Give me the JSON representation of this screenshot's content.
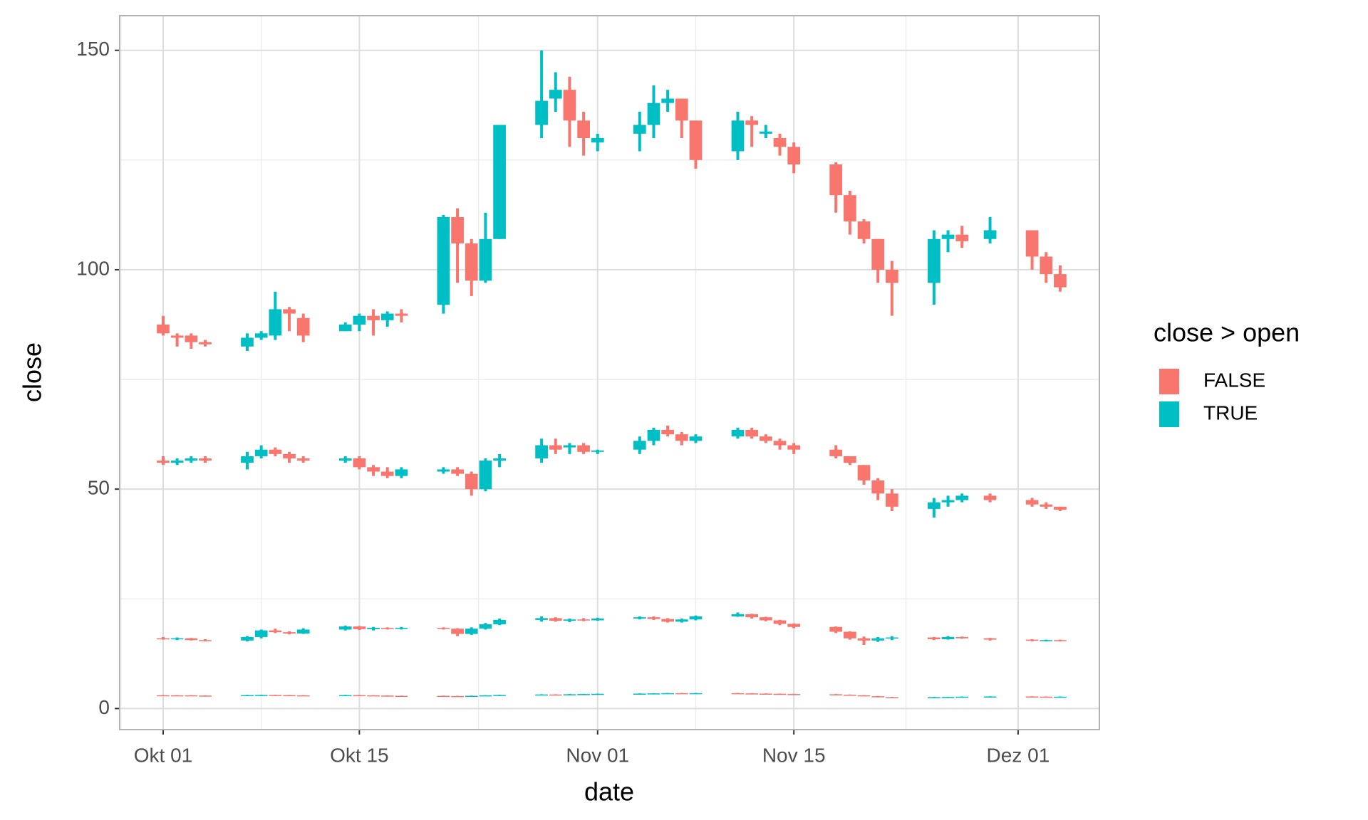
{
  "chart_data": {
    "type": "candlestick",
    "x_label": "date",
    "y_label": "close",
    "x": [
      0,
      1,
      2,
      3,
      6,
      7,
      8,
      9,
      10,
      13,
      14,
      15,
      16,
      17,
      20,
      21,
      22,
      23,
      24,
      27,
      28,
      29,
      30,
      31,
      34,
      35,
      36,
      37,
      38,
      41,
      42,
      43,
      44,
      45,
      48,
      49,
      50,
      51,
      52,
      55,
      56,
      57,
      59,
      62,
      63,
      64
    ],
    "xlim": [
      -3.1,
      66.8
    ],
    "xticks": [
      {
        "value": 0,
        "label": "Okt 01"
      },
      {
        "value": 14,
        "label": "Okt 15"
      },
      {
        "value": 31,
        "label": "Nov 01"
      },
      {
        "value": 45,
        "label": "Nov 15"
      },
      {
        "value": 61,
        "label": "Dez 01"
      }
    ],
    "xminor": [
      7,
      22.5,
      38,
      53
    ],
    "ylim": [
      -4.8,
      157.9
    ],
    "yticks": [
      0,
      50,
      100,
      150
    ],
    "yminor": [
      25,
      75,
      125
    ],
    "grid": true,
    "legend": {
      "title": "close > open",
      "position": "right",
      "entries": [
        {
          "label": "FALSE",
          "color": "#F8766D"
        },
        {
          "label": "TRUE",
          "color": "#00BFC4"
        }
      ]
    },
    "series": [
      {
        "open": [
          87.5,
          85,
          85,
          83.5,
          82.5,
          84.5,
          85,
          91,
          89,
          86,
          87.5,
          89.5,
          88.5,
          90,
          92,
          112,
          106,
          97.5,
          107,
          133,
          139,
          141,
          134,
          129,
          131,
          133,
          138,
          139,
          134,
          127,
          134,
          131,
          130,
          128,
          124,
          117,
          111,
          107,
          100,
          97,
          107,
          108,
          107,
          109,
          103,
          99
        ],
        "high": [
          89.5,
          85.5,
          85.5,
          84,
          85.5,
          86,
          95,
          91.5,
          90,
          88,
          90,
          91,
          90.5,
          91,
          112.5,
          114,
          107,
          113,
          133,
          150,
          145,
          144,
          136,
          131,
          136,
          142,
          141,
          139,
          134,
          136,
          135,
          133,
          131,
          129,
          124.5,
          118,
          111.5,
          107,
          102,
          109,
          109,
          110,
          112,
          109,
          104,
          101
        ],
        "low": [
          85,
          82.5,
          82,
          82.5,
          81.5,
          84,
          84,
          86,
          83.5,
          86,
          86,
          85,
          87,
          88,
          90,
          97,
          94,
          97,
          107,
          130,
          136,
          128,
          126,
          127,
          127,
          130,
          136,
          130,
          123,
          125,
          128,
          130,
          126,
          122,
          113,
          108,
          106,
          97,
          89.5,
          92,
          104,
          105,
          106,
          100,
          97,
          95
        ],
        "close": [
          85.5,
          84.5,
          83.5,
          83,
          84.5,
          85.5,
          91,
          90,
          85,
          87.5,
          89.5,
          88.5,
          90,
          89.5,
          112,
          106,
          97.5,
          107,
          133,
          138.5,
          141,
          134,
          130,
          130,
          133,
          138,
          139,
          134,
          125,
          134,
          133,
          131.5,
          128,
          124,
          117,
          111,
          107,
          100,
          97,
          107,
          108,
          106.5,
          109,
          103,
          99,
          96
        ]
      },
      {
        "open": [
          56.5,
          56,
          56.5,
          57,
          56,
          57.5,
          59,
          58,
          57,
          56.5,
          57,
          55,
          54,
          53,
          54,
          54.5,
          53.5,
          50,
          56.5,
          57,
          60,
          59.5,
          60,
          58.5,
          59,
          61,
          63.5,
          62.5,
          61,
          62,
          63.5,
          62,
          61,
          60,
          59,
          57.5,
          55.5,
          52,
          49,
          45.5,
          47,
          47.5,
          48.5,
          47.5,
          46.5,
          46
        ],
        "high": [
          57.5,
          57,
          57.5,
          57.5,
          58.5,
          60,
          59.5,
          58.5,
          57.5,
          57.5,
          57.5,
          55.5,
          55,
          55,
          55,
          55,
          54,
          57,
          58,
          61.5,
          61.5,
          60.5,
          60.5,
          59,
          62,
          64,
          64.5,
          63,
          62.5,
          64,
          64,
          62.5,
          61.5,
          60.5,
          60,
          57.5,
          55.5,
          52.5,
          50,
          48,
          48.5,
          49,
          49,
          48,
          47,
          46
        ],
        "low": [
          55.5,
          55.5,
          56,
          56,
          54.5,
          57,
          57.5,
          56,
          56,
          56,
          54.5,
          53,
          52.5,
          52.5,
          53.5,
          53,
          48.5,
          49.5,
          55,
          56,
          58,
          58,
          58,
          58,
          58,
          60,
          62,
          60,
          60.5,
          61.5,
          61.5,
          60.5,
          59,
          58,
          57,
          55.5,
          51,
          47.5,
          45,
          43.5,
          46,
          47,
          47,
          46,
          45.5,
          45
        ],
        "close": [
          56,
          56.5,
          57,
          56.5,
          57.5,
          59,
          58,
          57,
          56.5,
          57,
          55,
          54,
          53,
          54.5,
          54.5,
          53.5,
          50,
          56.5,
          57,
          60,
          59,
          60,
          58.5,
          58.8,
          61,
          63.5,
          62.5,
          61,
          62,
          63.5,
          62,
          61,
          60,
          59,
          57.5,
          56,
          52,
          49,
          46,
          47,
          47.5,
          48.5,
          47.5,
          46.5,
          46,
          45.3
        ]
      },
      {
        "open": [
          16,
          15.9,
          16,
          15.6,
          15.5,
          16.3,
          17.8,
          17.4,
          17.1,
          18,
          18.7,
          18.1,
          18.4,
          18.2,
          18.4,
          18.2,
          17,
          18.2,
          19.2,
          20.2,
          20.6,
          20,
          20.3,
          20.1,
          20.5,
          20.8,
          20.4,
          19.8,
          20.3,
          21,
          21.5,
          20.8,
          20.1,
          19.3,
          18.6,
          17.5,
          16,
          15.5,
          16,
          16.2,
          15.8,
          16.3,
          16,
          15.7,
          15.5,
          15.6
        ],
        "high": [
          16.3,
          16.2,
          16.1,
          15.8,
          16.5,
          18,
          18.2,
          17.6,
          18.3,
          18.9,
          18.8,
          18.6,
          18.5,
          18.6,
          18.5,
          18.3,
          18.5,
          19.5,
          20.5,
          21,
          20.8,
          20.5,
          20.6,
          20.7,
          21,
          21,
          20.6,
          20.5,
          21.2,
          21.9,
          21.6,
          20.9,
          20.2,
          19.4,
          18.7,
          17.6,
          16.4,
          16.3,
          16.5,
          16.3,
          16.5,
          16.4,
          16.1,
          15.8,
          15.7,
          15.7
        ],
        "low": [
          15.7,
          15.6,
          15.5,
          15.3,
          15.3,
          16,
          17.2,
          16.9,
          17,
          17.8,
          17.9,
          17.8,
          18,
          18,
          18,
          16.5,
          16.8,
          18,
          19,
          19.8,
          19.8,
          19.7,
          19.9,
          20,
          20.3,
          20.2,
          19.6,
          19.6,
          20.1,
          20.9,
          20.5,
          19.9,
          19,
          18.3,
          17.2,
          15.7,
          14.5,
          15.2,
          15.6,
          15.6,
          15.7,
          15.9,
          15.5,
          15.3,
          15.3,
          15.3
        ],
        "close": [
          15.9,
          16,
          15.6,
          15.5,
          16.3,
          17.8,
          17.4,
          17.1,
          18,
          18.7,
          18.1,
          18.4,
          18.2,
          18.4,
          18.2,
          17,
          18.2,
          19.2,
          20.2,
          20.6,
          20,
          20.3,
          20.1,
          20.5,
          20.8,
          20.4,
          19.8,
          20.3,
          21,
          21.5,
          20.8,
          20.1,
          19.3,
          18.6,
          17.5,
          16,
          15.5,
          16,
          16.2,
          15.8,
          16.3,
          16,
          15.7,
          15.5,
          15.6,
          15.4
        ]
      },
      {
        "open": [
          3.02,
          3.0,
          3.0,
          2.95,
          2.95,
          3.05,
          3.1,
          3.05,
          3.0,
          3.0,
          3.05,
          3.0,
          2.95,
          2.9,
          2.9,
          2.85,
          2.8,
          2.9,
          3.0,
          3.1,
          3.2,
          3.2,
          3.25,
          3.3,
          3.35,
          3.4,
          3.45,
          3.5,
          3.45,
          3.5,
          3.45,
          3.4,
          3.35,
          3.3,
          3.25,
          3.15,
          3.0,
          2.8,
          2.6,
          2.55,
          2.6,
          2.65,
          2.7,
          2.75,
          2.7,
          2.65
        ],
        "high": [
          3.07,
          3.05,
          3.05,
          3.0,
          3.1,
          3.15,
          3.15,
          3.1,
          3.05,
          3.1,
          3.1,
          3.05,
          3.0,
          2.95,
          2.95,
          2.9,
          2.95,
          3.05,
          3.15,
          3.25,
          3.25,
          3.3,
          3.35,
          3.4,
          3.45,
          3.5,
          3.55,
          3.55,
          3.55,
          3.55,
          3.5,
          3.45,
          3.4,
          3.35,
          3.3,
          3.2,
          3.05,
          2.85,
          2.65,
          2.65,
          2.7,
          2.75,
          2.8,
          2.8,
          2.75,
          2.75
        ],
        "low": [
          2.95,
          2.95,
          2.9,
          2.9,
          2.9,
          3.0,
          3.0,
          2.95,
          2.95,
          2.95,
          2.95,
          2.9,
          2.85,
          2.85,
          2.8,
          2.75,
          2.75,
          2.85,
          2.95,
          3.05,
          3.15,
          3.15,
          3.2,
          3.25,
          3.3,
          3.35,
          3.4,
          3.4,
          3.4,
          3.4,
          3.35,
          3.3,
          3.25,
          3.2,
          3.1,
          2.95,
          2.75,
          2.55,
          2.5,
          2.5,
          2.55,
          2.6,
          2.65,
          2.65,
          2.6,
          2.6
        ],
        "close": [
          3.0,
          3.0,
          2.95,
          2.95,
          3.05,
          3.1,
          3.05,
          3.0,
          3.0,
          3.05,
          3.0,
          2.95,
          2.9,
          2.9,
          2.85,
          2.8,
          2.9,
          3.0,
          3.1,
          3.2,
          3.2,
          3.25,
          3.3,
          3.35,
          3.4,
          3.45,
          3.5,
          3.45,
          3.5,
          3.45,
          3.4,
          3.35,
          3.3,
          3.25,
          3.15,
          3.0,
          2.8,
          2.6,
          2.55,
          2.6,
          2.65,
          2.7,
          2.75,
          2.7,
          2.65,
          2.7
        ]
      }
    ]
  }
}
